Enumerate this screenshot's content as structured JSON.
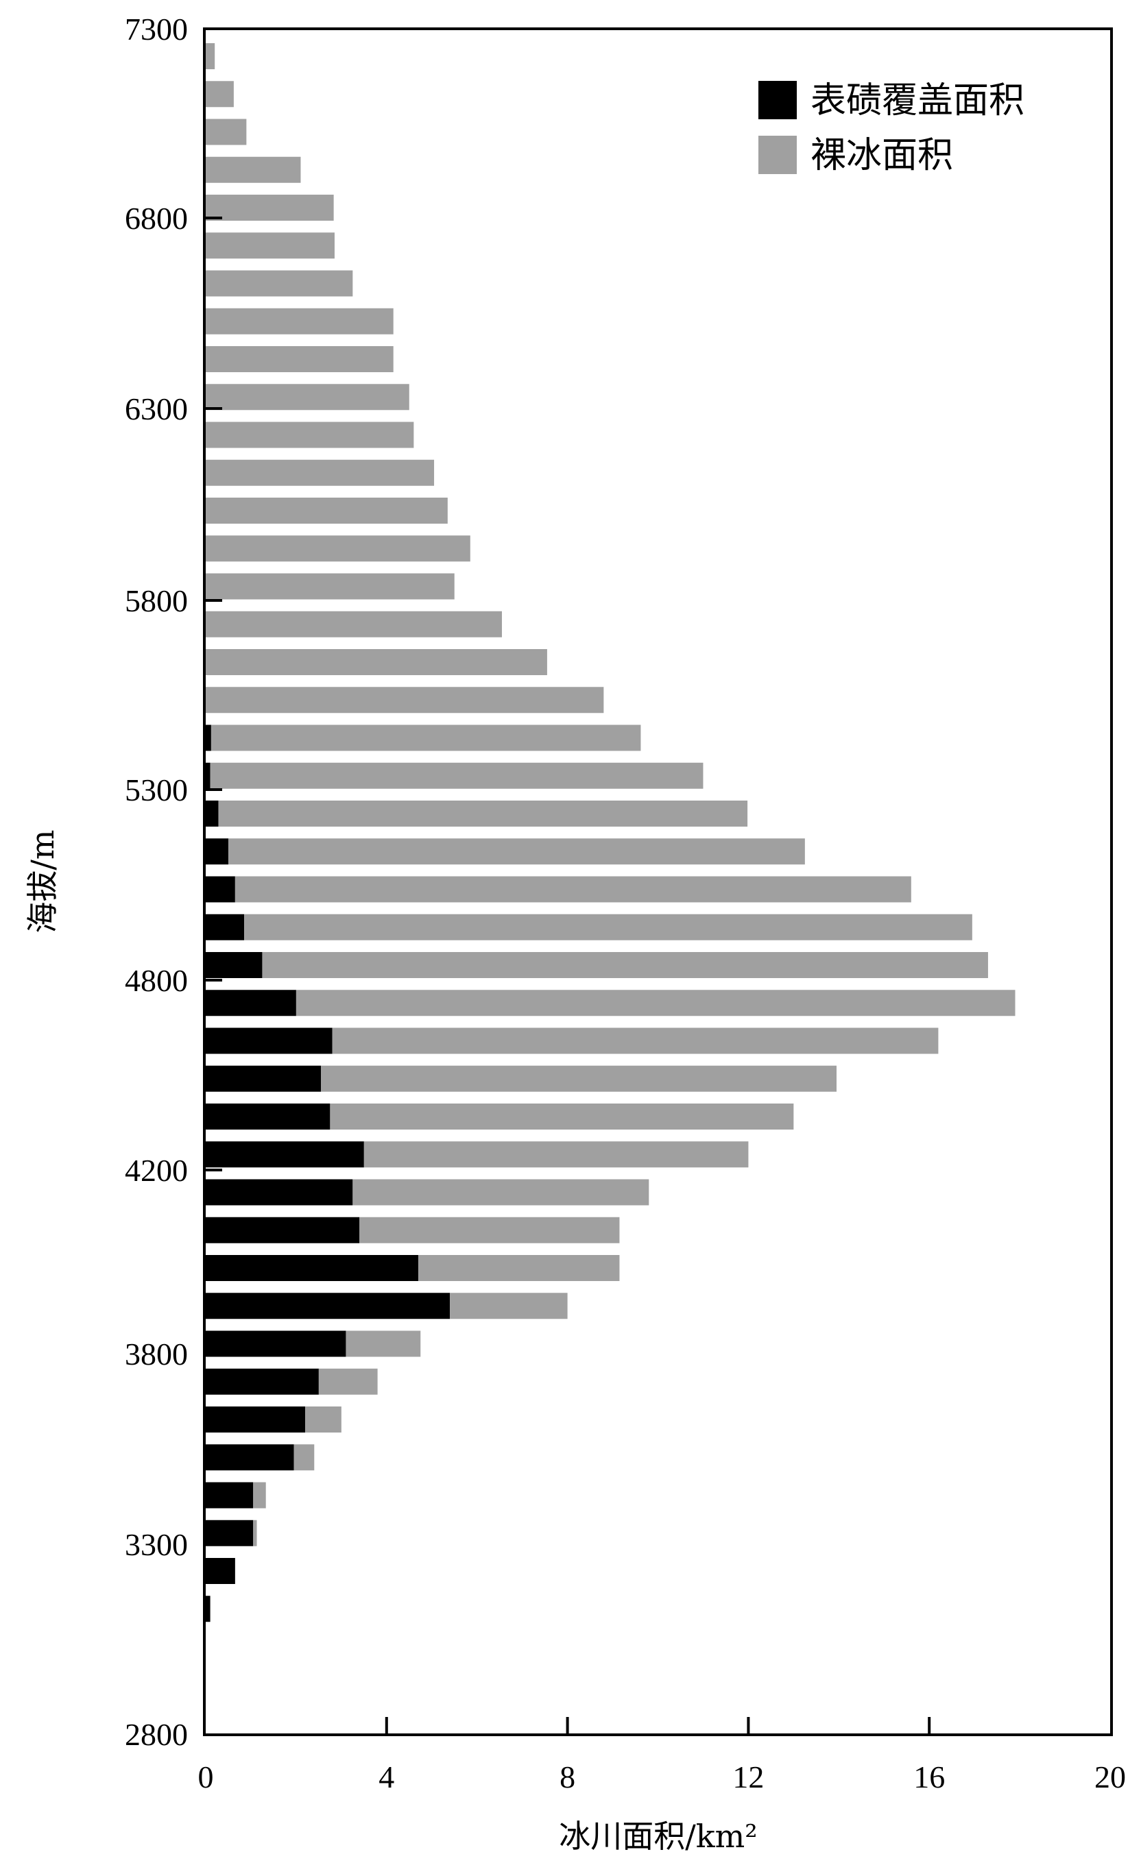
{
  "chart_data": {
    "type": "bar",
    "orientation": "horizontal",
    "stacked": true,
    "title": "",
    "xlabel": "冰川面积/km²",
    "ylabel": "海拔/m",
    "xlim": [
      0,
      20
    ],
    "ylim": [
      2800,
      7300
    ],
    "x_ticks": [
      "0",
      "4",
      "8",
      "12",
      "16",
      "20"
    ],
    "y_ticks": [
      "2800",
      "3300",
      "3800",
      "4200",
      "4800",
      "5300",
      "5800",
      "6300",
      "6800",
      "7300"
    ],
    "grid": false,
    "legend_position": "top-right",
    "colors": {
      "debris": "#000000",
      "ice": "#a0a0a0"
    },
    "categories": [
      7200,
      7100,
      7000,
      6900,
      6800,
      6700,
      6600,
      6500,
      6400,
      6300,
      6200,
      6100,
      6000,
      5900,
      5800,
      5700,
      5600,
      5500,
      5400,
      5300,
      5200,
      5100,
      5000,
      4900,
      4800,
      4700,
      4600,
      4500,
      4400,
      4300,
      4200,
      4100,
      4000,
      3900,
      3800,
      3700,
      3600,
      3500,
      3400,
      3300,
      3200,
      3100
    ],
    "series": [
      {
        "name": "表碛覆盖面积",
        "values": [
          0,
          0,
          0,
          0,
          0,
          0,
          0,
          0,
          0,
          0,
          0,
          0,
          0,
          0,
          0,
          0,
          0,
          0,
          0.12,
          0.1,
          0.28,
          0.5,
          0.65,
          0.85,
          1.25,
          2.0,
          2.8,
          2.55,
          2.75,
          3.5,
          3.25,
          3.4,
          4.7,
          5.4,
          3.1,
          2.5,
          2.2,
          1.95,
          1.05,
          1.05,
          0.65,
          0.1
        ]
      },
      {
        "name": "裸冰面积",
        "values": [
          0.2,
          0.62,
          0.9,
          2.1,
          2.83,
          2.85,
          3.25,
          4.15,
          4.15,
          4.5,
          4.6,
          5.05,
          5.35,
          5.85,
          5.5,
          6.55,
          7.55,
          8.8,
          9.5,
          10.9,
          11.7,
          12.75,
          14.95,
          16.1,
          16.05,
          15.9,
          13.4,
          11.4,
          10.25,
          8.5,
          6.55,
          5.75,
          4.45,
          2.6,
          1.65,
          1.3,
          0.8,
          0.45,
          0.28,
          0.08,
          0,
          0
        ]
      }
    ]
  }
}
